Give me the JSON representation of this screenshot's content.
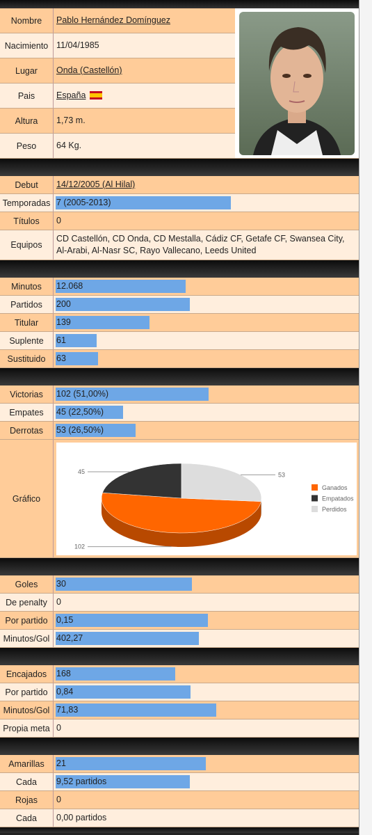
{
  "profile": {
    "rows": [
      {
        "label": "Nombre",
        "value": "Pablo Hernández Domínguez",
        "link": true
      },
      {
        "label": "Nacimiento",
        "value": "11/04/1985"
      },
      {
        "label": "Lugar",
        "value": "Onda (Castellón)",
        "link": true
      },
      {
        "label": "Pais",
        "value": "España",
        "link": true
      },
      {
        "label": "Altura",
        "value": "1,73 m."
      },
      {
        "label": "Peso",
        "value": "64 Kg."
      }
    ]
  },
  "sections": [
    {
      "rows": [
        {
          "label": "Debut",
          "value": "14/12/2005 (Al Hilal)",
          "link": true
        },
        {
          "label": "Temporadas",
          "value": "7 (2005-2013)"
        },
        {
          "label": "Títulos",
          "value": "0"
        },
        {
          "label": "Equipos",
          "value": "CD Castellón, CD Onda, CD Mestalla, Cádiz CF, Getafe CF, Swansea City, Al-Arabi, Al-Nasr SC, Rayo Vallecano, Leeds United"
        }
      ]
    },
    {
      "rows": [
        {
          "label": "Minutos",
          "value": "12.068"
        },
        {
          "label": "Partidos",
          "value": "200"
        },
        {
          "label": "Titular",
          "value": "139"
        },
        {
          "label": "Suplente",
          "value": "61"
        },
        {
          "label": "Sustituido",
          "value": "63"
        }
      ]
    },
    {
      "rows": [
        {
          "label": "Victorias",
          "value": "102 (51,00%)"
        },
        {
          "label": "Empates",
          "value": "45 (22,50%)"
        },
        {
          "label": "Derrotas",
          "value": "53 (26,50%)"
        }
      ],
      "chart_label": "Gráfico"
    },
    {
      "rows": [
        {
          "label": "Goles",
          "value": "30"
        },
        {
          "label": "De penalty",
          "value": "0"
        },
        {
          "label": "Por partido",
          "value": "0,15"
        },
        {
          "label": "Minutos/Gol",
          "value": "402,27"
        }
      ]
    },
    {
      "rows": [
        {
          "label": "Encajados",
          "value": "168"
        },
        {
          "label": "Por partido",
          "value": "0,84"
        },
        {
          "label": "Minutos/Gol",
          "value": "71,83"
        },
        {
          "label": "Propia meta",
          "value": "0"
        }
      ]
    },
    {
      "rows": [
        {
          "label": "Amarillas",
          "value": "21"
        },
        {
          "label": "Cada",
          "value": "9,52 partidos"
        },
        {
          "label": "Rojas",
          "value": "0"
        },
        {
          "label": "Cada",
          "value": "0,00 partidos"
        }
      ]
    }
  ],
  "chart_data": {
    "type": "pie",
    "categories": [
      "Ganados",
      "Empatados",
      "Perdidos"
    ],
    "values": [
      102,
      45,
      53
    ],
    "colors": [
      "#ff6600",
      "#333333",
      "#dddddd"
    ],
    "legend": "right"
  }
}
